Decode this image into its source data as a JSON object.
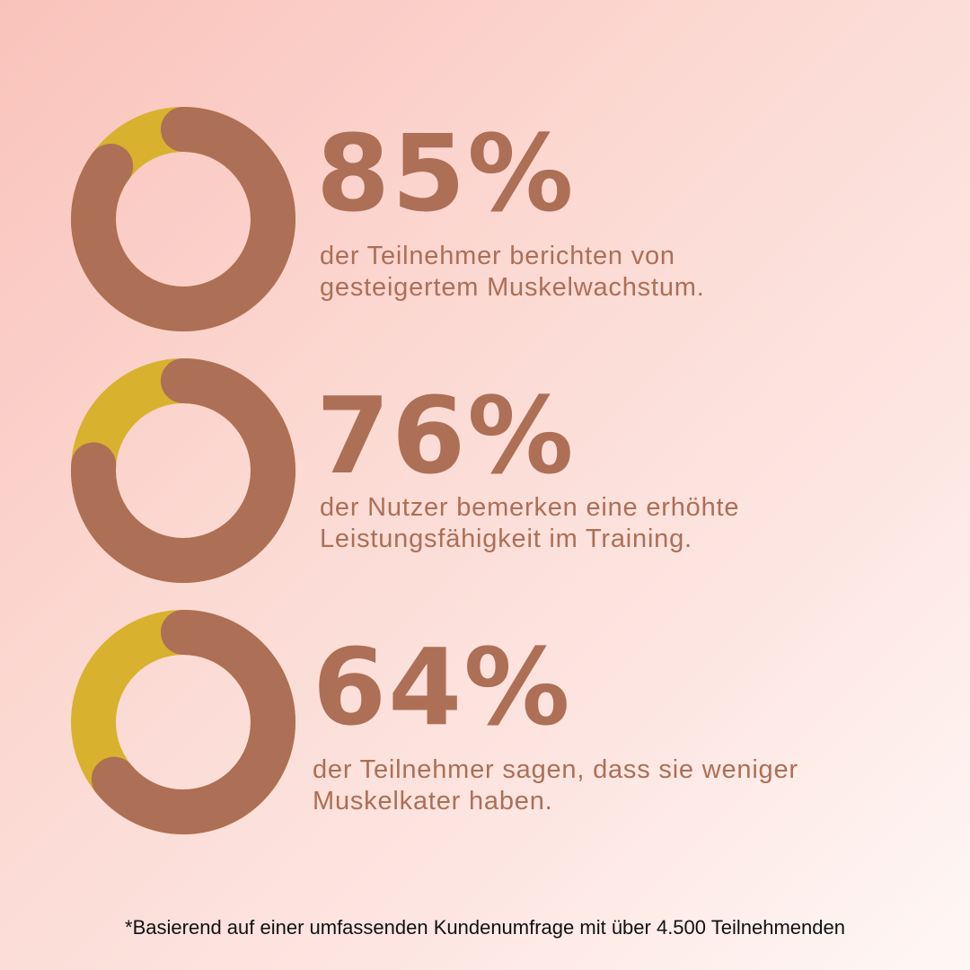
{
  "colors": {
    "primary": "#ad6f55",
    "accent": "#d8b12e"
  },
  "chart_data": [
    {
      "type": "pie",
      "value": 85,
      "value_label": "85%",
      "description_lines": [
        "der Teilnehmer berichten von",
        "gesteigertem Muskelwachstum."
      ]
    },
    {
      "type": "pie",
      "value": 76,
      "value_label": "76%",
      "description_lines": [
        "der Nutzer bemerken eine erhöhte",
        "Leistungsfähigkeit im Training."
      ]
    },
    {
      "type": "pie",
      "value": 64,
      "value_label": "64%",
      "description_lines": [
        "der Teilnehmer sagen, dass sie weniger",
        "Muskelkater haben."
      ]
    }
  ],
  "footnote": "*Basierend auf einer umfassenden Kundenumfrage mit über 4.500 Teilnehmenden"
}
